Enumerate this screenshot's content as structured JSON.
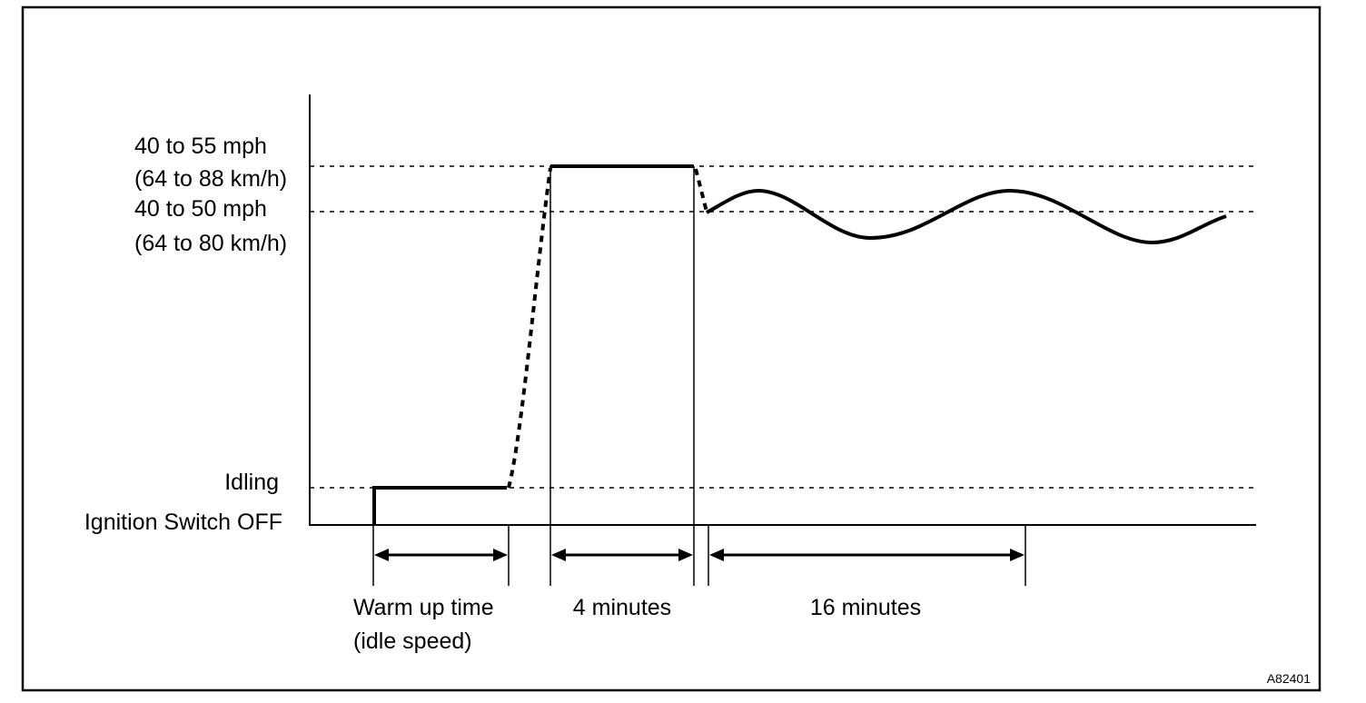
{
  "y_labels": {
    "speed_high_mph": "40 to 55 mph",
    "speed_high_kmh": "(64 to 88 km/h)",
    "speed_mid_mph": "40 to 50 mph",
    "speed_mid_kmh": "(64 to 80 km/h)",
    "idling": "Idling",
    "ignition_off": "Ignition Switch OFF"
  },
  "phases": {
    "warmup_line1": "Warm up time",
    "warmup_line2": "(idle speed)",
    "phase2": "4 minutes",
    "phase3": "16 minutes"
  },
  "figure_code": "A82401"
}
